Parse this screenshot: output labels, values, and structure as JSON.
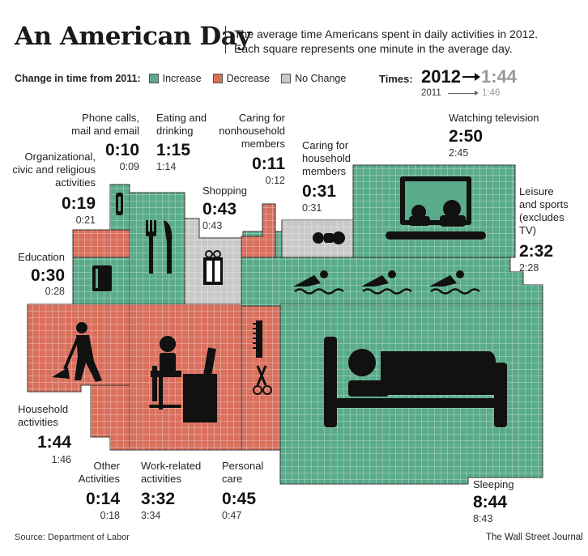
{
  "title": "An American Day",
  "subtitle_line1": "The average time Americans spent in daily activities in 2012.",
  "subtitle_line2": "Each square represents one minute in the average day.",
  "legend": {
    "heading": "Change in time from 2011:",
    "increase": "Increase",
    "decrease": "Decrease",
    "no_change": "No Change",
    "colors": {
      "increase": "#5aab8a",
      "decrease": "#d9705d",
      "no_change": "#c9c9c9"
    }
  },
  "times_key": {
    "heading": "Times:",
    "year_2012": "2012",
    "value_2012": "1:44",
    "year_2011": "2011",
    "value_2011": "1:46"
  },
  "activities": {
    "phone": {
      "label1": "Phone calls,",
      "label2": "mail and email",
      "time2012": "0:10",
      "time2011": "0:09",
      "change": "increase"
    },
    "eating": {
      "label1": "Eating and",
      "label2": "drinking",
      "time2012": "1:15",
      "time2011": "1:14",
      "change": "increase"
    },
    "caring_non": {
      "label1": "Caring for",
      "label2": "nonhousehold",
      "label3": "members",
      "time2012": "0:11",
      "time2011": "0:12",
      "change": "decrease"
    },
    "caring_house": {
      "label1": "Caring for",
      "label2": "household",
      "label3": "members",
      "time2012": "0:31",
      "time2011": "0:31",
      "change": "no_change"
    },
    "tv": {
      "label1": "Watching television",
      "time2012": "2:50",
      "time2011": "2:45",
      "change": "increase"
    },
    "org": {
      "label1": "Organizational,",
      "label2": "civic and religious",
      "label3": "activities",
      "time2012": "0:19",
      "time2011": "0:21",
      "change": "decrease"
    },
    "shopping": {
      "label1": "Shopping",
      "time2012": "0:43",
      "time2011": "0:43",
      "change": "no_change"
    },
    "education": {
      "label1": "Education",
      "time2012": "0:30",
      "time2011": "0:28",
      "change": "increase"
    },
    "leisure": {
      "label1": "Leisure",
      "label2": "and sports",
      "label3": "(excludes",
      "label4": "TV)",
      "time2012": "2:32",
      "time2011": "2:28",
      "change": "increase"
    },
    "household": {
      "label1": "Household",
      "label2": "activities",
      "time2012": "1:44",
      "time2011": "1:46",
      "change": "decrease"
    },
    "other": {
      "label1": "Other",
      "label2": "Activities",
      "time2012": "0:14",
      "time2011": "0:18",
      "change": "decrease"
    },
    "work": {
      "label1": "Work-related",
      "label2": "activities",
      "time2012": "3:32",
      "time2011": "3:34",
      "change": "decrease"
    },
    "personal": {
      "label1": "Personal",
      "label2": "care",
      "time2012": "0:45",
      "time2011": "0:47",
      "change": "decrease"
    },
    "sleeping": {
      "label1": "Sleeping",
      "time2012": "8:44",
      "time2011": "8:43",
      "change": "increase"
    }
  },
  "source": "Source: Department of Labor",
  "credit": "The Wall Street Journal"
}
